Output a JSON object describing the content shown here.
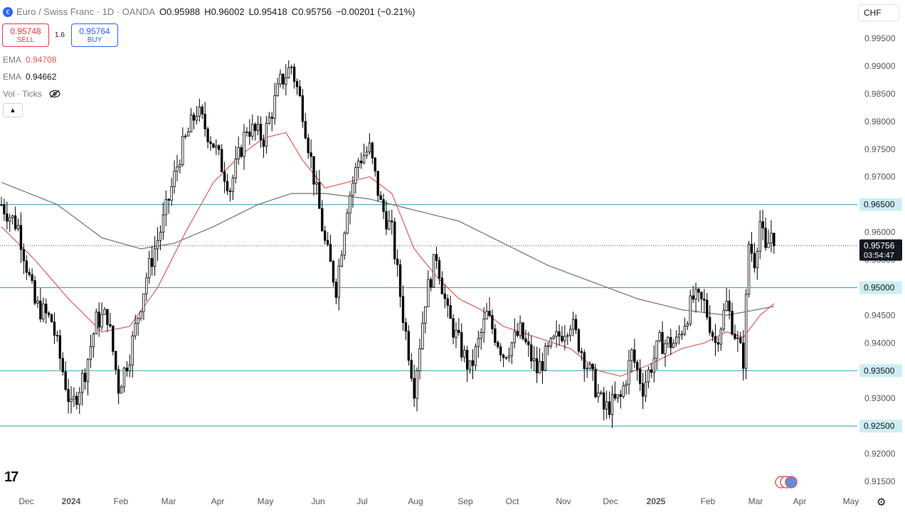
{
  "header": {
    "symbol_title": "Euro / Swiss Franc · 1D · OANDA",
    "open_label": "O",
    "open": "0.95988",
    "high_label": "H",
    "high": "0.96002",
    "low_label": "L",
    "low": "0.95418",
    "close_label": "C",
    "close": "0.95756",
    "change": "−0.00201 (−0.21%)"
  },
  "trade": {
    "sell_price": "0.95748",
    "sell_label": "SELL",
    "spread": "1.6",
    "buy_price": "0.95764",
    "buy_label": "BUY"
  },
  "indicators": {
    "ema1_label": "EMA",
    "ema1_value": "0.94708",
    "ema2_label": "EMA",
    "ema2_value": "0.94662",
    "vol_label": "Vol · Ticks"
  },
  "currency": "CHF",
  "colors": {
    "candle": "#000000",
    "ema_fast": "#e05a5a",
    "ema_slow": "#707070",
    "hline": "#26a6b7",
    "price_label_bg": "#131722",
    "level_label_bg": "#cdeef3"
  },
  "icons": {
    "hide": "eye-off-icon",
    "collapse": "chevron-up-icon",
    "settings": "gear-icon",
    "logo": "tradingview-logo"
  },
  "chart_data": {
    "type": "candlestick",
    "timeframe": "1D",
    "ylim": [
      0.915,
      0.998
    ],
    "y_ticks": [
      "0.99500",
      "0.99000",
      "0.98500",
      "0.98000",
      "0.97500",
      "0.97000",
      "0.96500",
      "0.96000",
      "0.95500",
      "0.95000",
      "0.94500",
      "0.94000",
      "0.93500",
      "0.93000",
      "0.92500",
      "0.92000",
      "0.91500"
    ],
    "x_ticks": [
      "Dec",
      "2024",
      "Feb",
      "Mar",
      "Apr",
      "May",
      "Jun",
      "Jul",
      "Aug",
      "Sep",
      "Oct",
      "Nov",
      "Dec",
      "2025",
      "Feb",
      "Mar",
      "Apr",
      "May"
    ],
    "horizontal_levels": [
      {
        "value": 0.965,
        "label": "0.96500"
      },
      {
        "value": 0.95,
        "label": "0.95000"
      },
      {
        "value": 0.935,
        "label": "0.93500"
      },
      {
        "value": 0.925,
        "label": "0.92500"
      }
    ],
    "last_price": {
      "value": 0.95756,
      "label": "0.95756",
      "countdown": "03:54:47"
    },
    "anchors_close": [
      [
        0,
        0.965
      ],
      [
        6,
        0.961
      ],
      [
        12,
        0.947
      ],
      [
        18,
        0.944
      ],
      [
        22,
        0.935
      ],
      [
        25,
        0.928
      ],
      [
        30,
        0.935
      ],
      [
        34,
        0.944
      ],
      [
        38,
        0.945
      ],
      [
        42,
        0.932
      ],
      [
        46,
        0.938
      ],
      [
        52,
        0.952
      ],
      [
        58,
        0.962
      ],
      [
        64,
        0.974
      ],
      [
        70,
        0.982
      ],
      [
        76,
        0.976
      ],
      [
        82,
        0.968
      ],
      [
        88,
        0.979
      ],
      [
        94,
        0.977
      ],
      [
        100,
        0.987
      ],
      [
        104,
        0.99
      ],
      [
        108,
        0.982
      ],
      [
        112,
        0.97
      ],
      [
        116,
        0.958
      ],
      [
        120,
        0.95
      ],
      [
        124,
        0.965
      ],
      [
        128,
        0.973
      ],
      [
        132,
        0.975
      ],
      [
        136,
        0.965
      ],
      [
        140,
        0.96
      ],
      [
        144,
        0.945
      ],
      [
        148,
        0.932
      ],
      [
        152,
        0.948
      ],
      [
        156,
        0.956
      ],
      [
        160,
        0.945
      ],
      [
        164,
        0.94
      ],
      [
        168,
        0.935
      ],
      [
        174,
        0.945
      ],
      [
        180,
        0.938
      ],
      [
        186,
        0.942
      ],
      [
        192,
        0.935
      ],
      [
        198,
        0.94
      ],
      [
        204,
        0.944
      ],
      [
        210,
        0.936
      ],
      [
        216,
        0.928
      ],
      [
        222,
        0.93
      ],
      [
        226,
        0.938
      ],
      [
        230,
        0.932
      ],
      [
        236,
        0.94
      ],
      [
        242,
        0.94
      ],
      [
        248,
        0.948
      ],
      [
        252,
        0.947
      ],
      [
        256,
        0.94
      ],
      [
        260,
        0.947
      ],
      [
        264,
        0.94
      ],
      [
        266,
        0.937
      ],
      [
        268,
        0.958
      ],
      [
        270,
        0.955
      ],
      [
        272,
        0.962
      ],
      [
        274,
        0.956
      ],
      [
        276,
        0.96
      ],
      [
        277,
        0.9576
      ]
    ],
    "ema_fast_series": [
      [
        0,
        0.961
      ],
      [
        12,
        0.955
      ],
      [
        24,
        0.948
      ],
      [
        36,
        0.942
      ],
      [
        46,
        0.943
      ],
      [
        56,
        0.95
      ],
      [
        66,
        0.96
      ],
      [
        76,
        0.969
      ],
      [
        86,
        0.974
      ],
      [
        94,
        0.977
      ],
      [
        102,
        0.978
      ],
      [
        108,
        0.973
      ],
      [
        116,
        0.968
      ],
      [
        124,
        0.969
      ],
      [
        132,
        0.97
      ],
      [
        140,
        0.967
      ],
      [
        148,
        0.957
      ],
      [
        156,
        0.952
      ],
      [
        164,
        0.948
      ],
      [
        172,
        0.946
      ],
      [
        180,
        0.943
      ],
      [
        192,
        0.941
      ],
      [
        204,
        0.939
      ],
      [
        214,
        0.935
      ],
      [
        222,
        0.934
      ],
      [
        232,
        0.936
      ],
      [
        244,
        0.939
      ],
      [
        252,
        0.94
      ],
      [
        260,
        0.942
      ],
      [
        266,
        0.941
      ],
      [
        272,
        0.945
      ],
      [
        277,
        0.9471
      ]
    ],
    "ema_slow_series": [
      [
        0,
        0.969
      ],
      [
        20,
        0.965
      ],
      [
        36,
        0.959
      ],
      [
        50,
        0.957
      ],
      [
        62,
        0.958
      ],
      [
        76,
        0.961
      ],
      [
        92,
        0.965
      ],
      [
        104,
        0.967
      ],
      [
        116,
        0.967
      ],
      [
        132,
        0.966
      ],
      [
        148,
        0.964
      ],
      [
        164,
        0.962
      ],
      [
        180,
        0.958
      ],
      [
        196,
        0.954
      ],
      [
        212,
        0.951
      ],
      [
        228,
        0.948
      ],
      [
        244,
        0.946
      ],
      [
        260,
        0.945
      ],
      [
        277,
        0.9466
      ]
    ]
  }
}
